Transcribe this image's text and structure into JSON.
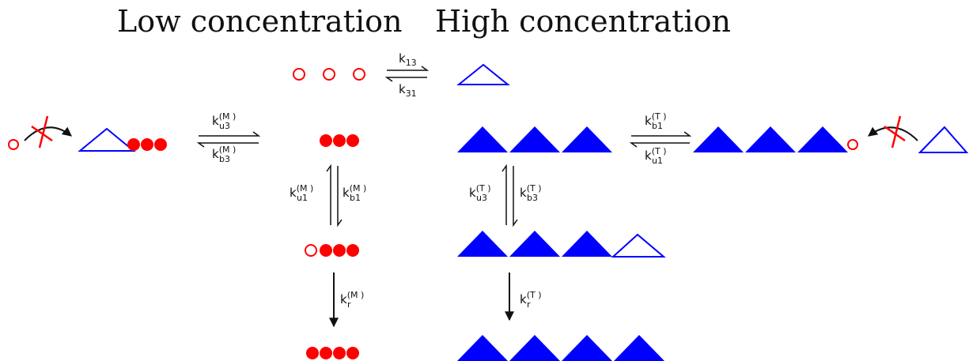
{
  "headings": {
    "low": "Low concentration",
    "high": "High concentration"
  },
  "colors": {
    "monomer": "#ff0000",
    "trimer": "#0000ff",
    "arrow": "#111111",
    "blocked_mark": "#ff0000"
  },
  "rates": {
    "k13": {
      "k": "k",
      "sub": "13"
    },
    "k31": {
      "k": "k",
      "sub": "31"
    },
    "ku3M": {
      "k": "k",
      "sub": "u3",
      "sup": "(M )"
    },
    "kb3M": {
      "k": "k",
      "sub": "b3",
      "sup": "(M )"
    },
    "ku1M": {
      "k": "k",
      "sub": "u1",
      "sup": "(M )"
    },
    "kb1M": {
      "k": "k",
      "sub": "b1",
      "sup": "(M )"
    },
    "krM": {
      "k": "k",
      "sub": "r",
      "sup": "(M )"
    },
    "kb1T": {
      "k": "k",
      "sub": "b1",
      "sup": "(T )"
    },
    "ku1T": {
      "k": "k",
      "sub": "u1",
      "sup": "(T )"
    },
    "ku3T": {
      "k": "k",
      "sub": "u3",
      "sup": "(T )"
    },
    "kb3T": {
      "k": "k",
      "sub": "b3",
      "sup": "(T )"
    },
    "krT": {
      "k": "k",
      "sub": "r",
      "sup": "(T )"
    }
  }
}
